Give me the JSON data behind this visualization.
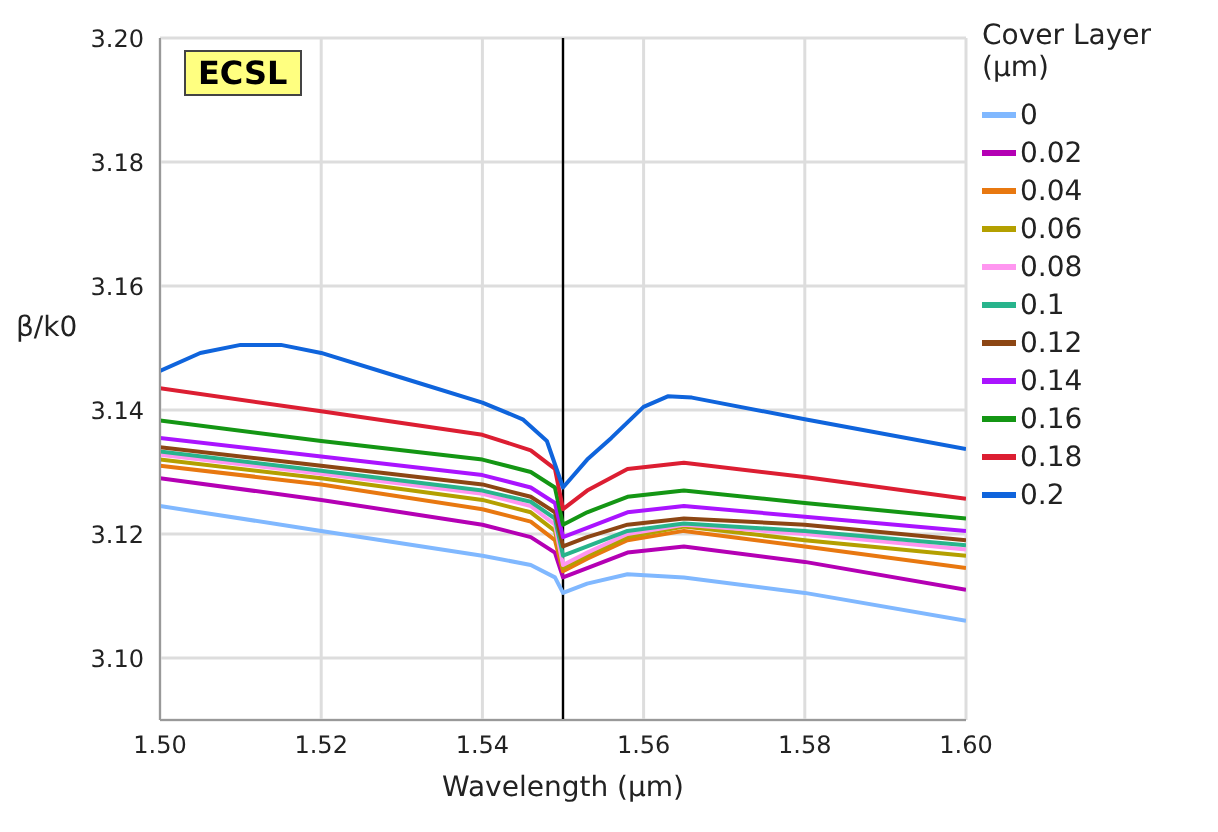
{
  "chart_data": {
    "type": "line",
    "xlabel": "Wavelength (µm)",
    "ylabel": "β/k0",
    "legend_title": "Cover Layer (µm)",
    "annotations": [
      "ECSL"
    ],
    "x": [
      1.5,
      1.52,
      1.54,
      1.546,
      1.549,
      1.55,
      1.553,
      1.558,
      1.565,
      1.58,
      1.6
    ],
    "series": [
      {
        "name": "0",
        "color": "#80b8ff",
        "values": [
          3.1245,
          3.1205,
          3.1165,
          3.115,
          3.113,
          3.1105,
          3.112,
          3.1135,
          3.113,
          3.1105,
          3.106
        ]
      },
      {
        "name": "0.02",
        "color": "#b400b4",
        "values": [
          3.129,
          3.1255,
          3.1215,
          3.1195,
          3.117,
          3.113,
          3.1145,
          3.117,
          3.118,
          3.1155,
          3.111
        ]
      },
      {
        "name": "0.04",
        "color": "#e87810",
        "values": [
          3.131,
          3.128,
          3.124,
          3.122,
          3.119,
          3.114,
          3.116,
          3.119,
          3.1205,
          3.118,
          3.1145
        ]
      },
      {
        "name": "0.06",
        "color": "#b4a000",
        "values": [
          3.132,
          3.129,
          3.1255,
          3.1235,
          3.1205,
          3.1145,
          3.1165,
          3.1195,
          3.1212,
          3.119,
          3.1165
        ]
      },
      {
        "name": "0.08",
        "color": "#ff96f0",
        "values": [
          3.1328,
          3.1297,
          3.1265,
          3.1245,
          3.1215,
          3.115,
          3.117,
          3.12,
          3.1215,
          3.12,
          3.1175
        ]
      },
      {
        "name": "0.1",
        "color": "#28b48c",
        "values": [
          3.1333,
          3.1302,
          3.127,
          3.1252,
          3.1225,
          3.1165,
          3.118,
          3.1205,
          3.1217,
          3.1205,
          3.1182
        ]
      },
      {
        "name": "0.12",
        "color": "#8c4614",
        "values": [
          3.134,
          3.131,
          3.128,
          3.126,
          3.1235,
          3.118,
          3.1195,
          3.1215,
          3.1225,
          3.1215,
          3.119
        ]
      },
      {
        "name": "0.14",
        "color": "#aa14ff",
        "values": [
          3.1355,
          3.1325,
          3.1295,
          3.1275,
          3.125,
          3.1195,
          3.121,
          3.1235,
          3.1245,
          3.1228,
          3.1205
        ]
      },
      {
        "name": "0.16",
        "color": "#149614",
        "values": [
          3.1383,
          3.135,
          3.132,
          3.13,
          3.1275,
          3.1215,
          3.1235,
          3.126,
          3.127,
          3.125,
          3.1225
        ]
      },
      {
        "name": "0.18",
        "color": "#dc1e32",
        "values": [
          3.1435,
          3.1398,
          3.136,
          3.1335,
          3.1305,
          3.124,
          3.127,
          3.1305,
          3.1315,
          3.1292,
          3.1257
        ]
      },
      {
        "name": "0.2",
        "color": "#0f64dc",
        "x": [
          1.5,
          1.505,
          1.51,
          1.515,
          1.52,
          1.53,
          1.54,
          1.545,
          1.548,
          1.55,
          1.553,
          1.556,
          1.56,
          1.563,
          1.566,
          1.58,
          1.6
        ],
        "values": [
          3.1463,
          3.1492,
          3.1505,
          3.1505,
          3.1492,
          3.1452,
          3.1412,
          3.1385,
          3.135,
          3.1275,
          3.132,
          3.1355,
          3.1405,
          3.1422,
          3.142,
          3.1385,
          3.1337
        ]
      }
    ],
    "xlim": [
      1.5,
      1.6
    ],
    "xticks": [
      {
        "value": 1.5,
        "label": "1.50"
      },
      {
        "value": 1.52,
        "label": "1.52"
      },
      {
        "value": 1.54,
        "label": "1.54"
      },
      {
        "value": 1.56,
        "label": "1.56"
      },
      {
        "value": 1.58,
        "label": "1.58"
      },
      {
        "value": 1.6,
        "label": "1.60"
      }
    ],
    "ylim": [
      3.09,
      3.2
    ],
    "yticks": [
      {
        "value": 3.1,
        "label": "3.10"
      },
      {
        "value": 3.12,
        "label": "3.12"
      },
      {
        "value": 3.14,
        "label": "3.14"
      },
      {
        "value": 3.16,
        "label": "3.16"
      },
      {
        "value": 3.18,
        "label": "3.18"
      },
      {
        "value": 3.2,
        "label": "3.20"
      }
    ],
    "ref_lines": [
      {
        "axis": "x",
        "value": 1.55,
        "color": "#000000"
      }
    ],
    "grid": true,
    "legend": "right",
    "marker": "none",
    "line_style": "solid"
  }
}
